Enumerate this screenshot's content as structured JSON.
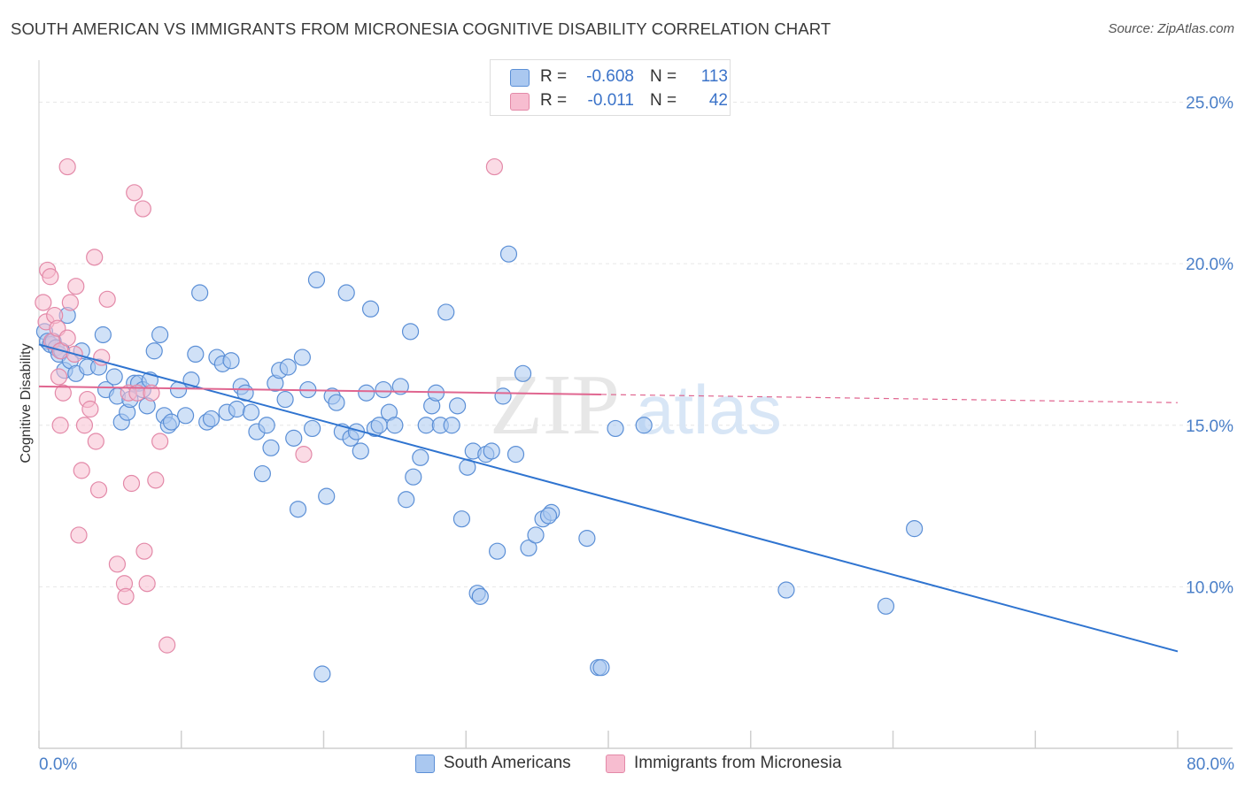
{
  "title": "SOUTH AMERICAN VS IMMIGRANTS FROM MICRONESIA COGNITIVE DISABILITY CORRELATION CHART",
  "source": "Source: ZipAtlas.com",
  "watermark": {
    "zip": "ZIP",
    "atlas": "atlas"
  },
  "legend": {
    "r_label": "R =",
    "n_label": "N =",
    "rows": [
      {
        "r": "-0.608",
        "n": "113",
        "color": "#aac8f0",
        "border": "#5b8fd6"
      },
      {
        "r": "-0.011",
        "n": "42",
        "color": "#f7bdd0",
        "border": "#e389a8"
      }
    ]
  },
  "bottom_legend": [
    {
      "label": "South Americans",
      "color": "#aac8f0",
      "border": "#5b8fd6"
    },
    {
      "label": "Immigrants from Micronesia",
      "color": "#f7bdd0",
      "border": "#e389a8"
    }
  ],
  "chart_data": {
    "type": "scatter",
    "title": "SOUTH AMERICAN VS IMMIGRANTS FROM MICRONESIA COGNITIVE DISABILITY CORRELATION CHART",
    "xlabel": "",
    "ylabel": "Cognitive Disability",
    "xlim": [
      0,
      80
    ],
    "ylim": [
      5,
      26
    ],
    "x_tick_labels": [
      "0.0%",
      "80.0%"
    ],
    "y_ticks": [
      10,
      15,
      20,
      25
    ],
    "y_tick_labels": [
      "10.0%",
      "15.0%",
      "20.0%",
      "25.0%"
    ],
    "grid": true,
    "series": [
      {
        "name": "South Americans",
        "color": "#aac8f0",
        "stroke": "#5b8fd6",
        "line_color": "#2f74d0",
        "trend": {
          "x": [
            0,
            80
          ],
          "y": [
            17.5,
            8.0
          ],
          "dashed_from": null
        },
        "points": [
          [
            0.4,
            17.9
          ],
          [
            0.6,
            17.6
          ],
          [
            0.8,
            17.5
          ],
          [
            1.0,
            17.6
          ],
          [
            1.2,
            17.4
          ],
          [
            1.4,
            17.2
          ],
          [
            1.6,
            17.3
          ],
          [
            1.8,
            16.7
          ],
          [
            2.0,
            18.4
          ],
          [
            2.2,
            17.0
          ],
          [
            2.6,
            16.6
          ],
          [
            3.0,
            17.3
          ],
          [
            3.4,
            16.8
          ],
          [
            4.2,
            16.8
          ],
          [
            4.5,
            17.8
          ],
          [
            4.7,
            16.1
          ],
          [
            5.3,
            16.5
          ],
          [
            5.5,
            15.9
          ],
          [
            5.8,
            15.1
          ],
          [
            6.2,
            15.4
          ],
          [
            6.4,
            15.8
          ],
          [
            6.7,
            16.3
          ],
          [
            7.0,
            16.3
          ],
          [
            7.3,
            16.1
          ],
          [
            7.6,
            15.6
          ],
          [
            7.8,
            16.4
          ],
          [
            8.1,
            17.3
          ],
          [
            8.5,
            17.8
          ],
          [
            8.8,
            15.3
          ],
          [
            9.1,
            15.0
          ],
          [
            9.3,
            15.1
          ],
          [
            9.8,
            16.1
          ],
          [
            10.3,
            15.3
          ],
          [
            10.7,
            16.4
          ],
          [
            11.0,
            17.2
          ],
          [
            11.3,
            19.1
          ],
          [
            11.8,
            15.1
          ],
          [
            12.1,
            15.2
          ],
          [
            12.5,
            17.1
          ],
          [
            12.9,
            16.9
          ],
          [
            13.2,
            15.4
          ],
          [
            13.5,
            17.0
          ],
          [
            13.9,
            15.5
          ],
          [
            14.2,
            16.2
          ],
          [
            14.5,
            16.0
          ],
          [
            14.9,
            15.4
          ],
          [
            15.3,
            14.8
          ],
          [
            15.7,
            13.5
          ],
          [
            16.0,
            15.0
          ],
          [
            16.3,
            14.3
          ],
          [
            16.6,
            16.3
          ],
          [
            16.9,
            16.7
          ],
          [
            17.3,
            15.8
          ],
          [
            17.5,
            16.8
          ],
          [
            17.9,
            14.6
          ],
          [
            18.2,
            12.4
          ],
          [
            18.5,
            17.1
          ],
          [
            18.9,
            16.1
          ],
          [
            19.2,
            14.9
          ],
          [
            19.5,
            19.5
          ],
          [
            19.9,
            7.3
          ],
          [
            20.2,
            12.8
          ],
          [
            20.6,
            15.9
          ],
          [
            20.9,
            15.7
          ],
          [
            21.3,
            14.8
          ],
          [
            21.6,
            19.1
          ],
          [
            21.9,
            14.6
          ],
          [
            22.3,
            14.8
          ],
          [
            22.6,
            14.2
          ],
          [
            23.0,
            16.0
          ],
          [
            23.3,
            18.6
          ],
          [
            23.6,
            14.9
          ],
          [
            23.9,
            15.0
          ],
          [
            24.2,
            16.1
          ],
          [
            24.6,
            15.4
          ],
          [
            25.0,
            15.0
          ],
          [
            25.4,
            16.2
          ],
          [
            25.8,
            12.7
          ],
          [
            26.1,
            17.9
          ],
          [
            26.3,
            13.4
          ],
          [
            26.8,
            14.0
          ],
          [
            27.2,
            15.0
          ],
          [
            27.6,
            15.6
          ],
          [
            27.9,
            16.0
          ],
          [
            28.2,
            15.0
          ],
          [
            28.6,
            18.5
          ],
          [
            29.0,
            15.0
          ],
          [
            29.4,
            15.6
          ],
          [
            29.7,
            12.1
          ],
          [
            30.1,
            13.7
          ],
          [
            30.5,
            14.2
          ],
          [
            30.8,
            9.8
          ],
          [
            31.0,
            9.7
          ],
          [
            31.4,
            14.1
          ],
          [
            31.8,
            14.2
          ],
          [
            32.2,
            11.1
          ],
          [
            32.6,
            15.9
          ],
          [
            33.0,
            20.3
          ],
          [
            33.5,
            14.1
          ],
          [
            34.0,
            16.6
          ],
          [
            34.4,
            11.2
          ],
          [
            34.9,
            11.6
          ],
          [
            35.4,
            12.1
          ],
          [
            36.0,
            12.3
          ],
          [
            38.5,
            11.5
          ],
          [
            39.3,
            7.5
          ],
          [
            39.5,
            7.5
          ],
          [
            40.5,
            14.9
          ],
          [
            42.5,
            15.0
          ],
          [
            52.5,
            9.9
          ],
          [
            59.5,
            9.4
          ],
          [
            61.5,
            11.8
          ],
          [
            35.8,
            12.2
          ]
        ]
      },
      {
        "name": "Immigrants from Micronesia",
        "color": "#f7bdd0",
        "stroke": "#e389a8",
        "line_color": "#e06690",
        "trend": {
          "x": [
            0,
            80
          ],
          "y": [
            16.2,
            15.7
          ],
          "dashed_from": 39.5
        },
        "points": [
          [
            0.3,
            18.8
          ],
          [
            0.5,
            18.2
          ],
          [
            0.6,
            19.8
          ],
          [
            0.8,
            19.6
          ],
          [
            0.9,
            17.6
          ],
          [
            1.1,
            18.4
          ],
          [
            1.3,
            18.0
          ],
          [
            1.5,
            17.3
          ],
          [
            1.7,
            16.0
          ],
          [
            2.0,
            17.7
          ],
          [
            1.4,
            16.5
          ],
          [
            1.5,
            15.0
          ],
          [
            2.2,
            18.8
          ],
          [
            2.5,
            17.2
          ],
          [
            2.6,
            19.3
          ],
          [
            2.8,
            11.6
          ],
          [
            3.0,
            13.6
          ],
          [
            3.2,
            15.0
          ],
          [
            3.4,
            15.8
          ],
          [
            3.6,
            15.5
          ],
          [
            3.9,
            20.2
          ],
          [
            4.0,
            14.5
          ],
          [
            4.2,
            13.0
          ],
          [
            4.4,
            17.1
          ],
          [
            4.8,
            18.9
          ],
          [
            5.5,
            10.7
          ],
          [
            6.0,
            10.1
          ],
          [
            6.1,
            9.7
          ],
          [
            6.3,
            16.0
          ],
          [
            6.5,
            13.2
          ],
          [
            6.7,
            22.2
          ],
          [
            6.9,
            16.0
          ],
          [
            7.3,
            21.7
          ],
          [
            7.4,
            11.1
          ],
          [
            7.6,
            10.1
          ],
          [
            7.9,
            16.0
          ],
          [
            8.2,
            13.3
          ],
          [
            8.5,
            14.5
          ],
          [
            9.0,
            8.2
          ],
          [
            2.0,
            23.0
          ],
          [
            18.6,
            14.1
          ],
          [
            32.0,
            23.0
          ]
        ]
      }
    ]
  }
}
